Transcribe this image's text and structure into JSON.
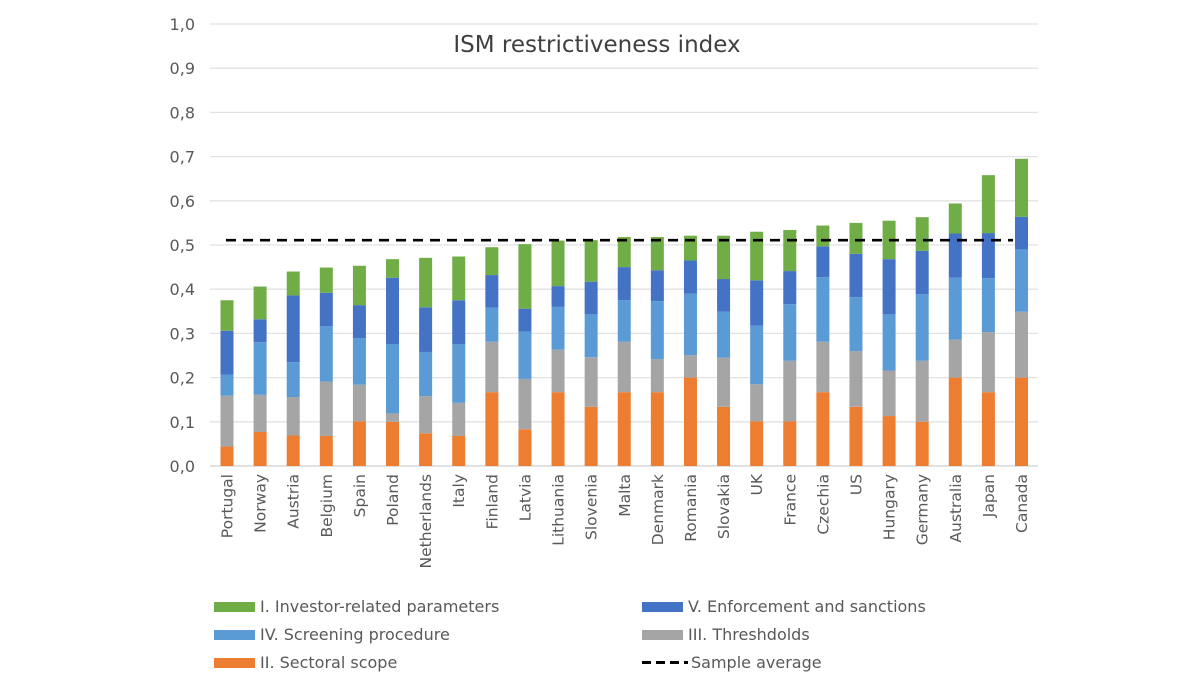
{
  "chart_data": {
    "type": "bar",
    "stacked": true,
    "title": "ISM restrictiveness index",
    "xlabel": "",
    "ylabel": "",
    "ylim": [
      0,
      1.0
    ],
    "yticks": [
      "0,0",
      "0,1",
      "0,2",
      "0,3",
      "0,4",
      "0,5",
      "0,6",
      "0,7",
      "0,8",
      "0,9",
      "1,0"
    ],
    "grid": true,
    "legend_position": "bottom",
    "categories": [
      "Portugal",
      "Norway",
      "Austria",
      "Belgium",
      "Spain",
      "Poland",
      "Netherlands",
      "Italy",
      "Finland",
      "Latvia",
      "Lithuania",
      "Slovenia",
      "Malta",
      "Denmark",
      "Romania",
      "Slovakia",
      "UK",
      "France",
      "Czechia",
      "US",
      "Hungary",
      "Germany",
      "Australia",
      "Japan",
      "Canada"
    ],
    "series": [
      {
        "name": "II. Sectoral scope",
        "color": "#ed7d31",
        "values": [
          0.044,
          0.077,
          0.069,
          0.068,
          0.101,
          0.1,
          0.074,
          0.068,
          0.167,
          0.083,
          0.167,
          0.134,
          0.167,
          0.167,
          0.2,
          0.134,
          0.101,
          0.101,
          0.167,
          0.134,
          0.113,
          0.1,
          0.2,
          0.167,
          0.2
        ]
      },
      {
        "name": "III. Threshdolds",
        "color": "#a5a5a5",
        "values": [
          0.115,
          0.084,
          0.087,
          0.123,
          0.083,
          0.019,
          0.084,
          0.075,
          0.114,
          0.114,
          0.096,
          0.112,
          0.114,
          0.075,
          0.051,
          0.111,
          0.084,
          0.137,
          0.114,
          0.126,
          0.103,
          0.138,
          0.086,
          0.136,
          0.149
        ]
      },
      {
        "name": "IV. Screening procedure",
        "color": "#5b9bd5",
        "values": [
          0.048,
          0.119,
          0.079,
          0.125,
          0.105,
          0.157,
          0.1,
          0.133,
          0.077,
          0.107,
          0.097,
          0.097,
          0.094,
          0.131,
          0.139,
          0.104,
          0.133,
          0.128,
          0.146,
          0.122,
          0.127,
          0.151,
          0.14,
          0.122,
          0.141
        ]
      },
      {
        "name": "V. Enforcement and sanctions",
        "color": "#4472c4",
        "values": [
          0.099,
          0.052,
          0.151,
          0.076,
          0.075,
          0.15,
          0.101,
          0.099,
          0.074,
          0.052,
          0.047,
          0.074,
          0.075,
          0.07,
          0.075,
          0.074,
          0.102,
          0.075,
          0.07,
          0.098,
          0.125,
          0.098,
          0.1,
          0.102,
          0.074
        ]
      },
      {
        "name": "I. Investor-related parameters",
        "color": "#70ad47",
        "values": [
          0.069,
          0.074,
          0.054,
          0.057,
          0.089,
          0.042,
          0.112,
          0.099,
          0.063,
          0.146,
          0.103,
          0.094,
          0.068,
          0.075,
          0.056,
          0.098,
          0.11,
          0.093,
          0.047,
          0.07,
          0.087,
          0.076,
          0.068,
          0.131,
          0.131
        ]
      }
    ],
    "reference_lines": [
      {
        "name": "Sample average",
        "value": 0.511,
        "style": "dashed",
        "color": "#000000"
      }
    ]
  },
  "legend": {
    "items": [
      {
        "label": "I. Investor-related parameters",
        "color": "#70ad47",
        "kind": "swatch"
      },
      {
        "label": "V. Enforcement and sanctions",
        "color": "#4472c4",
        "kind": "swatch"
      },
      {
        "label": "IV. Screening procedure",
        "color": "#5b9bd5",
        "kind": "swatch"
      },
      {
        "label": "III. Threshdolds",
        "color": "#a5a5a5",
        "kind": "swatch"
      },
      {
        "label": "II. Sectoral scope",
        "color": "#ed7d31",
        "kind": "swatch"
      },
      {
        "label": "Sample average",
        "color": "#000000",
        "kind": "dash"
      }
    ]
  }
}
